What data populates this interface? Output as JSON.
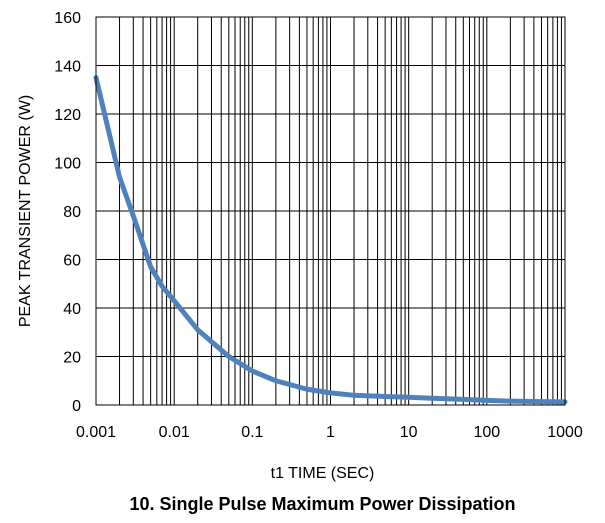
{
  "chart_data": {
    "type": "line",
    "title": "10. Single Pulse Maximum Power Dissipation",
    "xlabel": "t1 TIME (SEC)",
    "ylabel": "PEAK TRANSIENT POWER (W)",
    "x_scale": "log",
    "xlim": [
      0.001,
      1000
    ],
    "ylim": [
      0,
      160
    ],
    "x_ticks": [
      0.001,
      0.01,
      0.1,
      1,
      10,
      100,
      1000
    ],
    "x_tick_labels": [
      "0.001",
      "0.01",
      "0.1",
      "1",
      "10",
      "100",
      "1000"
    ],
    "y_ticks": [
      0,
      20,
      40,
      60,
      80,
      100,
      120,
      140,
      160
    ],
    "y_tick_labels": [
      "0",
      "20",
      "40",
      "60",
      "80",
      "100",
      "120",
      "140",
      "160"
    ],
    "grid": {
      "x_major": true,
      "x_minor": true,
      "y_major": true
    },
    "legend": "none",
    "series": [
      {
        "color": "#4f81bd",
        "x": [
          0.001,
          0.002,
          0.003,
          0.005,
          0.007,
          0.01,
          0.02,
          0.05,
          0.1,
          0.2,
          0.5,
          1,
          2,
          5,
          10,
          20,
          50,
          100,
          200,
          500,
          1000
        ],
        "y": [
          135,
          94,
          78,
          57,
          49,
          43,
          31,
          20,
          14,
          10,
          6.5,
          5,
          4,
          3.5,
          3.2,
          2.8,
          2.3,
          1.9,
          1.6,
          1.4,
          1.3
        ]
      }
    ]
  }
}
